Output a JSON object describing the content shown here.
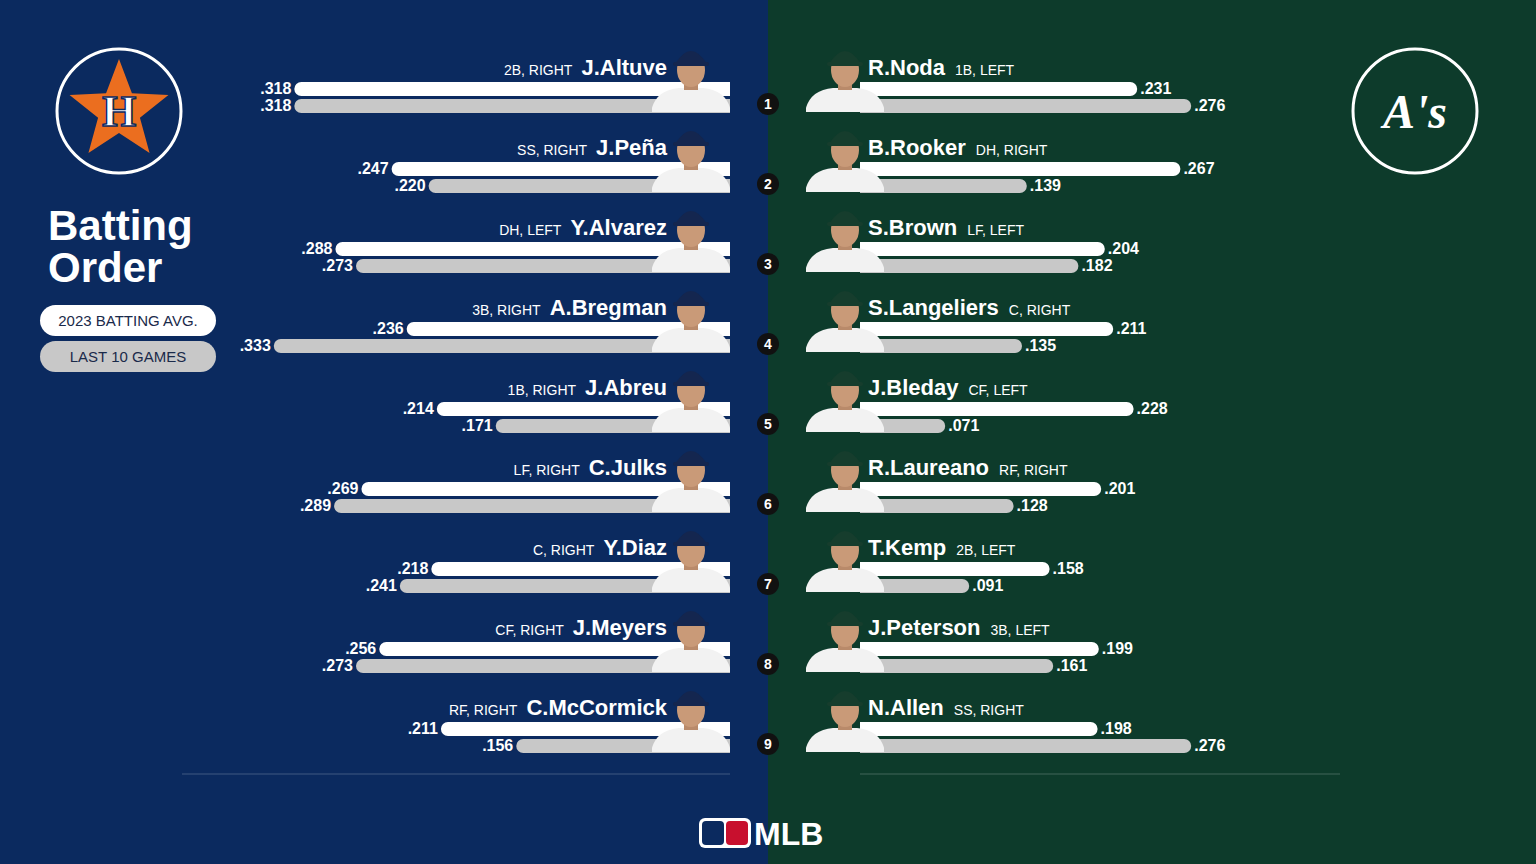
{
  "page": {
    "title": "Batting Order",
    "brand": "MLB"
  },
  "batting_order": [
    1,
    2,
    3,
    4,
    5,
    6,
    7,
    8,
    9
  ],
  "chart_data": [
    {
      "type": "bar",
      "orientation": "horizontal",
      "logo": "H",
      "legend": "left",
      "data_labels": true,
      "tick_labels": false,
      "categories": [
        "J.Altuve",
        "J.Peña",
        "Y.Alvarez",
        "A.Bregman",
        "J.Abreu",
        "C.Julks",
        "Y.Diaz",
        "J.Meyers",
        "C.McCormick"
      ],
      "positions": [
        "2B, RIGHT",
        "SS, RIGHT",
        "DH, LEFT",
        "3B, RIGHT",
        "1B, RIGHT",
        "LF, RIGHT",
        "C, RIGHT",
        "CF, RIGHT",
        "RF, RIGHT"
      ],
      "xlim": [
        0,
        0.4
      ],
      "series": [
        {
          "name": "2023 BATTING AVG.",
          "color": "#ffffff",
          "values": [
            0.318,
            0.247,
            0.288,
            0.236,
            0.214,
            0.269,
            0.218,
            0.256,
            0.211
          ],
          "value_labels": [
            ".318",
            ".247",
            ".288",
            ".236",
            ".214",
            ".269",
            ".218",
            ".256",
            ".211"
          ]
        },
        {
          "name": "LAST 10 GAMES",
          "color": "#c8c8c8",
          "values": [
            0.318,
            0.22,
            0.273,
            0.333,
            0.171,
            0.289,
            0.241,
            0.273,
            0.156
          ],
          "value_labels": [
            ".318",
            ".220",
            ".273",
            ".333",
            ".171",
            ".289",
            ".241",
            ".273",
            ".156"
          ]
        }
      ]
    },
    {
      "type": "bar",
      "orientation": "horizontal",
      "logo": "A's",
      "data_labels": true,
      "tick_labels": false,
      "categories": [
        "R.Noda",
        "B.Rooker",
        "S.Brown",
        "S.Langeliers",
        "J.Bleday",
        "R.Laureano",
        "T.Kemp",
        "J.Peterson",
        "N.Allen"
      ],
      "positions": [
        "1B, LEFT",
        "DH, RIGHT",
        "LF, LEFT",
        "C, RIGHT",
        "CF, LEFT",
        "RF, RIGHT",
        "2B, LEFT",
        "3B, LEFT",
        "SS, RIGHT"
      ],
      "xlim": [
        0,
        0.4
      ],
      "series": [
        {
          "color": "#ffffff",
          "values": [
            0.231,
            0.267,
            0.204,
            0.211,
            0.228,
            0.201,
            0.158,
            0.199,
            0.198
          ],
          "value_labels": [
            ".231",
            ".267",
            ".204",
            ".211",
            ".228",
            ".201",
            ".158",
            ".199",
            ".198"
          ]
        },
        {
          "color": "#c8c8c8",
          "values": [
            0.276,
            0.139,
            0.182,
            0.135,
            0.071,
            0.128,
            0.091,
            0.161,
            0.276
          ],
          "value_labels": [
            ".276",
            ".139",
            ".182",
            ".135",
            ".071",
            ".128",
            ".091",
            ".161",
            ".276"
          ]
        }
      ]
    }
  ]
}
